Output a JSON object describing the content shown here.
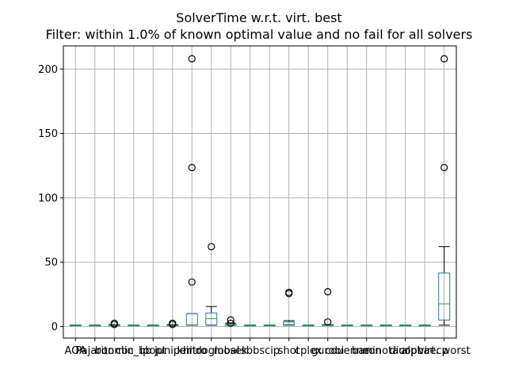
{
  "chart_data": {
    "type": "boxplot",
    "title": "SolverTime w.r.t. virt. best",
    "subtitle": "Filter: within 1.0% of known optimal value and no fail for all solvers",
    "xlabel": "",
    "ylabel": "",
    "ylim": [
      -9,
      218
    ],
    "yticks": [
      0,
      50,
      100,
      150,
      200
    ],
    "ytick_labels": [
      "0",
      "50",
      "100",
      "150",
      "200"
    ],
    "grid": true,
    "categories": [
      "AOA",
      "Pajarito",
      "bonmin",
      "cbc_bb",
      "ipopt",
      "juniper",
      "knitro",
      "lindoglobal",
      "mosek",
      "sbb",
      "scip",
      "shot",
      "cplex",
      "gurobi",
      "couenne",
      "baron",
      "minotaur",
      "dicopt",
      "alphaecp",
      "virt. worst"
    ],
    "xtick_labels": [
      "AOA",
      "Pajarito",
      "bonmin",
      "cbc_bb",
      "ipopt",
      "juniper",
      "knitro",
      "lindoglobal",
      "mosek",
      "sbb",
      "scip",
      "shot",
      "cplex",
      "gurobi",
      "couenne",
      "baron",
      "minotaur",
      "dicopt",
      "alphaecp",
      "virt. worst"
    ],
    "series": [
      {
        "name": "AOA",
        "q1": 1.0,
        "median": 1.0,
        "q3": 1.1,
        "whisker_low": 1.0,
        "whisker_high": 1.2,
        "outliers": []
      },
      {
        "name": "Pajarito",
        "q1": 1.0,
        "median": 1.0,
        "q3": 1.1,
        "whisker_low": 1.0,
        "whisker_high": 1.2,
        "outliers": []
      },
      {
        "name": "bonmin",
        "q1": 1.0,
        "median": 1.0,
        "q3": 1.2,
        "whisker_low": 1.0,
        "whisker_high": 1.5,
        "outliers": [
          1.5,
          2.5
        ]
      },
      {
        "name": "cbc_bb",
        "q1": 1.0,
        "median": 1.0,
        "q3": 1.1,
        "whisker_low": 1.0,
        "whisker_high": 1.2,
        "outliers": []
      },
      {
        "name": "ipopt",
        "q1": 1.0,
        "median": 1.0,
        "q3": 1.1,
        "whisker_low": 1.0,
        "whisker_high": 1.2,
        "outliers": []
      },
      {
        "name": "juniper",
        "q1": 1.0,
        "median": 1.0,
        "q3": 1.2,
        "whisker_low": 1.0,
        "whisker_high": 1.5,
        "outliers": [
          1.5,
          2.5
        ]
      },
      {
        "name": "knitro",
        "q1": 1.0,
        "median": 1.3,
        "q3": 10.0,
        "whisker_low": 1.0,
        "whisker_high": 10.0,
        "outliers": [
          34.5,
          123.5,
          208.0
        ]
      },
      {
        "name": "lindoglobal",
        "q1": 1.2,
        "median": 6.0,
        "q3": 10.5,
        "whisker_low": 1.0,
        "whisker_high": 15.5,
        "outliers": [
          62.0
        ]
      },
      {
        "name": "mosek",
        "q1": 1.0,
        "median": 1.0,
        "q3": 1.5,
        "whisker_low": 1.0,
        "whisker_high": 2.5,
        "outliers": [
          2.5,
          5.0
        ]
      },
      {
        "name": "sbb",
        "q1": 1.0,
        "median": 1.0,
        "q3": 1.1,
        "whisker_low": 1.0,
        "whisker_high": 1.2,
        "outliers": []
      },
      {
        "name": "scip",
        "q1": 1.0,
        "median": 1.0,
        "q3": 1.1,
        "whisker_low": 1.0,
        "whisker_high": 1.2,
        "outliers": []
      },
      {
        "name": "shot",
        "q1": 1.0,
        "median": 1.5,
        "q3": 3.5,
        "whisker_low": 1.0,
        "whisker_high": 4.5,
        "outliers": [
          25.5,
          26.5
        ]
      },
      {
        "name": "cplex",
        "q1": 1.0,
        "median": 1.0,
        "q3": 1.1,
        "whisker_low": 1.0,
        "whisker_high": 1.2,
        "outliers": []
      },
      {
        "name": "gurobi",
        "q1": 1.0,
        "median": 1.0,
        "q3": 1.3,
        "whisker_low": 1.0,
        "whisker_high": 1.5,
        "outliers": [
          3.5,
          27.0
        ]
      },
      {
        "name": "couenne",
        "q1": 1.0,
        "median": 1.0,
        "q3": 1.1,
        "whisker_low": 1.0,
        "whisker_high": 1.2,
        "outliers": []
      },
      {
        "name": "baron",
        "q1": 1.0,
        "median": 1.0,
        "q3": 1.1,
        "whisker_low": 1.0,
        "whisker_high": 1.2,
        "outliers": []
      },
      {
        "name": "minotaur",
        "q1": 1.0,
        "median": 1.0,
        "q3": 1.1,
        "whisker_low": 1.0,
        "whisker_high": 1.2,
        "outliers": []
      },
      {
        "name": "dicopt",
        "q1": 1.0,
        "median": 1.0,
        "q3": 1.1,
        "whisker_low": 1.0,
        "whisker_high": 1.2,
        "outliers": []
      },
      {
        "name": "alphaecp",
        "q1": 1.0,
        "median": 1.0,
        "q3": 1.1,
        "whisker_low": 1.0,
        "whisker_high": 1.2,
        "outliers": []
      },
      {
        "name": "virt. worst",
        "q1": 5.0,
        "median": 17.5,
        "q3": 41.5,
        "whisker_low": 1.0,
        "whisker_high": 62.0,
        "outliers": [
          123.5,
          208.0
        ]
      }
    ],
    "colors": {
      "box": "#1f77b4",
      "median": "#2ca02c",
      "whisker": "#000000",
      "flier": "#000000",
      "grid": "#b0b0b0",
      "axis": "#000000"
    }
  }
}
